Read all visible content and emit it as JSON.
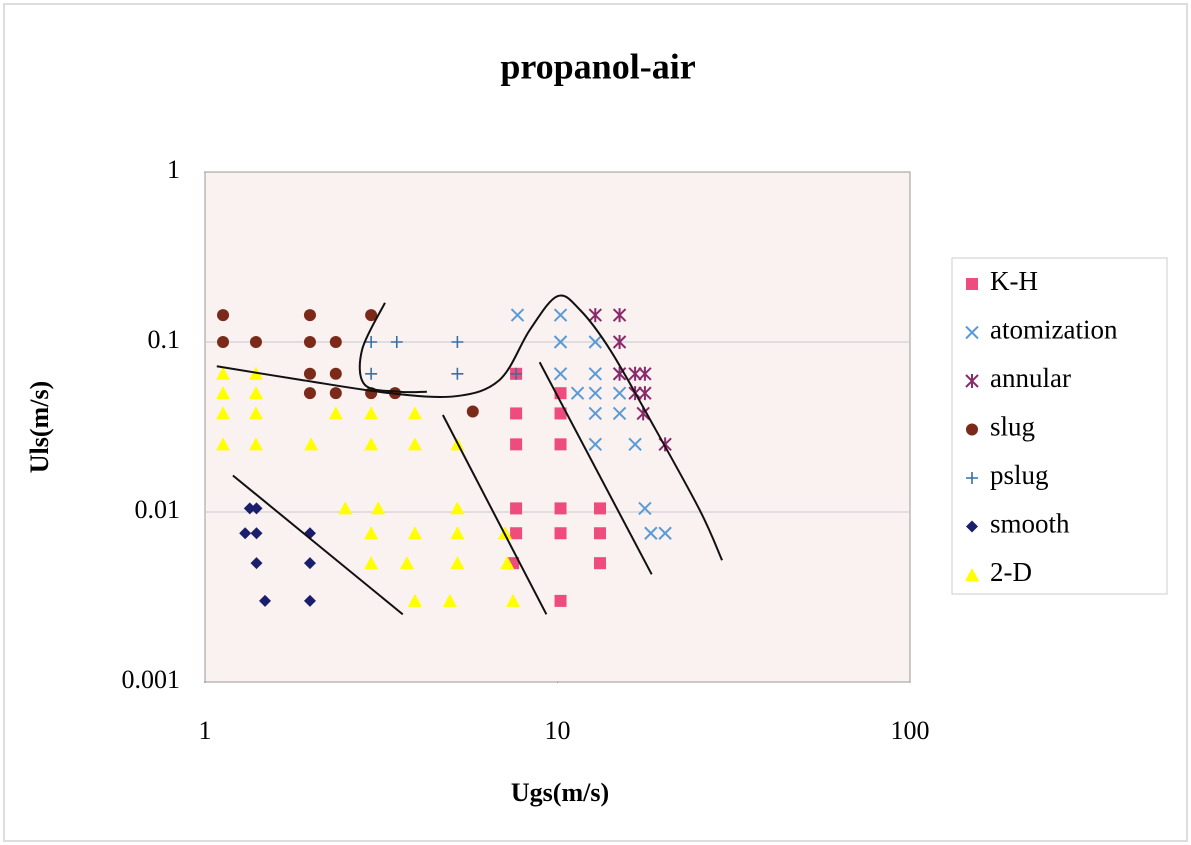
{
  "chart_data": {
    "type": "scatter",
    "title": "propanol-air",
    "x_label": "Ugs(m/s)",
    "y_label": "Uls(m/s)",
    "x_log": true,
    "y_log": true,
    "xlim": [
      1,
      100
    ],
    "xticks": [
      1,
      10,
      100
    ],
    "ylim": [
      0.001,
      1
    ],
    "yticks": [
      0.001,
      0.01,
      0.1,
      1
    ],
    "grid": true,
    "legend": "right",
    "series": [
      {
        "name": "K-H",
        "color": "#ee4c7c",
        "marker": "square",
        "x": [
          7.63,
          7.63,
          7.63,
          7.63,
          7.63,
          7.48,
          10.2,
          10.2,
          10.2,
          10.2,
          10.2,
          10.2,
          13.2,
          13.2,
          13.2
        ],
        "values": [
          0.065,
          0.038,
          0.025,
          0.0105,
          0.0075,
          0.005,
          0.05,
          0.038,
          0.025,
          0.0105,
          0.0075,
          0.003,
          0.0105,
          0.0075,
          0.005
        ]
      },
      {
        "name": "atomization",
        "color": "#5b9bd5",
        "marker": "x",
        "x": [
          7.7,
          10.2,
          10.2,
          10.2,
          11.4,
          12.8,
          12.8,
          12.8,
          12.8,
          12.8,
          15,
          15,
          15,
          16.6,
          17.7,
          18.4,
          20.2
        ],
        "values": [
          0.144,
          0.144,
          0.1,
          0.065,
          0.05,
          0.05,
          0.1,
          0.065,
          0.038,
          0.025,
          0.065,
          0.05,
          0.038,
          0.025,
          0.0105,
          0.0075,
          0.0075
        ]
      },
      {
        "name": "annular",
        "color": "#8b2a6b",
        "marker": "star",
        "x": [
          12.8,
          15,
          15,
          15,
          16.6,
          17.7,
          16.6,
          17.7,
          17.5,
          20.2
        ],
        "values": [
          0.144,
          0.144,
          0.1,
          0.065,
          0.065,
          0.065,
          0.05,
          0.05,
          0.038,
          0.025
        ]
      },
      {
        "name": "slug",
        "color": "#7b2a1a",
        "marker": "circle",
        "x": [
          1.125,
          1.125,
          1.395,
          1.985,
          1.985,
          1.985,
          2.35,
          2.35,
          1.985,
          2.35,
          2.96,
          2.96,
          3.46,
          5.75
        ],
        "values": [
          0.144,
          0.1,
          0.1,
          0.144,
          0.1,
          0.065,
          0.1,
          0.065,
          0.05,
          0.05,
          0.144,
          0.05,
          0.05,
          0.039
        ]
      },
      {
        "name": "pslug",
        "color": "#3a6ea5",
        "marker": "plus",
        "x": [
          2.96,
          3.5,
          5.2,
          2.96,
          5.2,
          7.63
        ],
        "values": [
          0.1,
          0.1,
          0.1,
          0.065,
          0.065,
          0.065
        ]
      },
      {
        "name": "smooth",
        "color": "#1a1f6b",
        "marker": "diamond",
        "x": [
          1.34,
          1.4,
          1.3,
          1.4,
          1.4,
          1.48,
          1.985,
          1.985,
          1.985
        ],
        "values": [
          0.0105,
          0.0105,
          0.0075,
          0.0075,
          0.005,
          0.003,
          0.0075,
          0.005,
          0.003
        ]
      },
      {
        "name": "2-D",
        "color": "#ffff00",
        "marker": "triangle",
        "x": [
          1.125,
          1.125,
          1.125,
          1.125,
          1.395,
          1.395,
          1.395,
          1.395,
          2.0,
          2.35,
          2.5,
          2.96,
          2.96,
          2.96,
          2.96,
          3.1,
          3.94,
          3.94,
          3.94,
          3.74,
          3.94,
          4.95,
          5.2,
          5.2,
          5.2,
          5.2,
          7.1,
          7.2,
          7.48
        ],
        "values": [
          0.065,
          0.05,
          0.038,
          0.025,
          0.065,
          0.05,
          0.038,
          0.025,
          0.025,
          0.038,
          0.0105,
          0.038,
          0.025,
          0.0075,
          0.005,
          0.0105,
          0.038,
          0.025,
          0.0075,
          0.005,
          0.003,
          0.003,
          0.025,
          0.0105,
          0.0075,
          0.005,
          0.0075,
          0.005,
          0.003
        ]
      }
    ],
    "boundary_lines": [
      {
        "color": "#111111",
        "x": [
          1.2,
          3.64
        ],
        "y": [
          0.0164,
          0.0025
        ]
      },
      {
        "color": "#111111",
        "x": [
          4.73,
          9.3
        ],
        "y": [
          0.0372,
          0.0025
        ]
      },
      {
        "color": "#111111",
        "x": [
          8.9,
          18.5
        ],
        "y": [
          0.076,
          0.0043
        ]
      },
      {
        "color": "#111111",
        "x": [
          1.08,
          1.86,
          3.35,
          5.15,
          6.86,
          8.35,
          10.0,
          11.6,
          14.1,
          18.3,
          25.3,
          29.3
        ],
        "y": [
          0.072,
          0.06,
          0.05,
          0.048,
          0.06,
          0.118,
          0.186,
          0.154,
          0.09,
          0.035,
          0.0103,
          0.0052
        ]
      },
      {
        "color": "#111111",
        "x": [
          3.24,
          2.79,
          2.84,
          3.57,
          4.26
        ],
        "y": [
          0.17,
          0.09,
          0.056,
          0.051,
          0.051
        ]
      }
    ]
  }
}
